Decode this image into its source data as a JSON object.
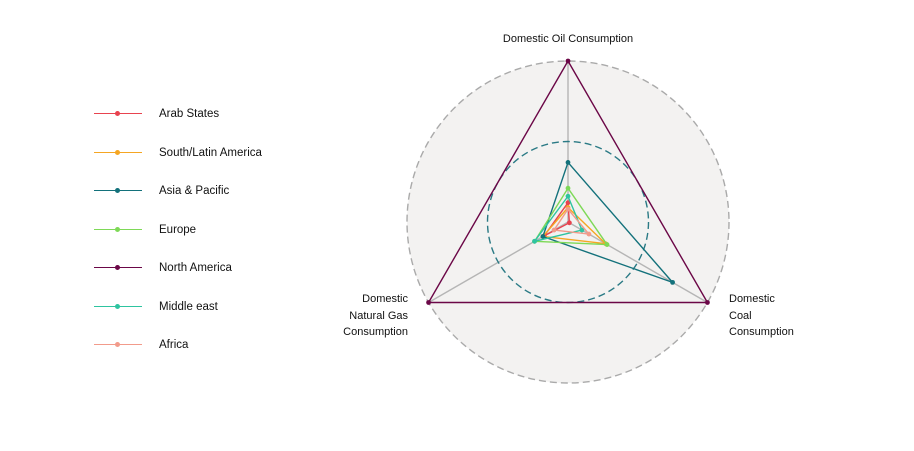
{
  "chart_data": {
    "type": "radar",
    "axes": [
      {
        "label_lines": [
          "Domestic Oil Consumption"
        ]
      },
      {
        "label_lines": [
          "Domestic",
          "Coal",
          "Consumption"
        ]
      },
      {
        "label_lines": [
          "Domestic",
          "Natural Gas",
          "Consumption"
        ]
      }
    ],
    "rings": [
      0.5,
      1.0
    ],
    "series": [
      {
        "name": "Arab States",
        "color": "#e8434f",
        "values": [
          0.12,
          0.01,
          0.17
        ]
      },
      {
        "name": "South/Latin America",
        "color": "#f5a623",
        "values": [
          0.09,
          0.27,
          0.18
        ]
      },
      {
        "name": "Asia & Pacific",
        "color": "#13717b",
        "values": [
          0.37,
          0.75,
          0.18
        ]
      },
      {
        "name": "Europe",
        "color": "#7ed957",
        "values": [
          0.21,
          0.28,
          0.24
        ]
      },
      {
        "name": "North America",
        "color": "#6b0747",
        "values": [
          1.0,
          1.0,
          1.0
        ]
      },
      {
        "name": "Middle east",
        "color": "#2ec4a0",
        "values": [
          0.16,
          0.1,
          0.24
        ]
      },
      {
        "name": "Africa",
        "color": "#f29b8b",
        "values": [
          0.08,
          0.15,
          0.1
        ]
      }
    ],
    "background_fill": "#f3f2f1",
    "outer_ring_color": "#aaaaaa",
    "inner_ring_color": "#2a7a85",
    "legend_placement": "left"
  }
}
